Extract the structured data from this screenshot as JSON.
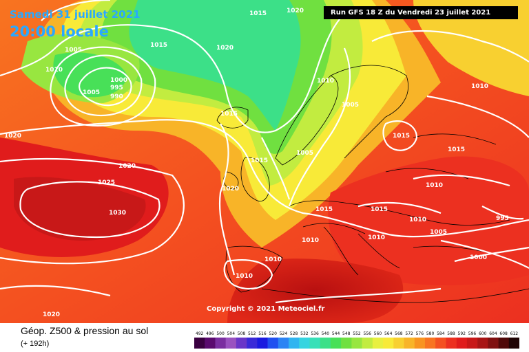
{
  "header": {
    "date": "Samedi 31 juillet 2021",
    "time": "20:00 locale",
    "run": "Run GFS 18 Z du Vendredi 23 juillet 2021"
  },
  "copyright": "Copyright © 2021 Meteociel.fr",
  "footer": {
    "title": "Géop. Z500 & pression au sol",
    "forecast_hour": "(+ 192h)"
  },
  "colour_scale": {
    "ticks": [
      "492",
      "496",
      "500",
      "504",
      "508",
      "512",
      "516",
      "520",
      "524",
      "528",
      "532",
      "536",
      "540",
      "544",
      "548",
      "552",
      "556",
      "560",
      "564",
      "568",
      "572",
      "576",
      "580",
      "584",
      "588",
      "592",
      "596",
      "600",
      "604",
      "608",
      "612"
    ],
    "colors": [
      "#3a0040",
      "#5a0a6e",
      "#7a2ea0",
      "#9a52c0",
      "#6a36c8",
      "#3a2ad8",
      "#1a1ae0",
      "#2050f0",
      "#2c84f4",
      "#30b4f0",
      "#36d4e0",
      "#38e0b8",
      "#3ce088",
      "#48e058",
      "#70e040",
      "#98e640",
      "#c2ec40",
      "#e8f040",
      "#f8ea38",
      "#f8d030",
      "#f8b428",
      "#f89420",
      "#f87420",
      "#f45020",
      "#ec3020",
      "#e01c1c",
      "#c81818",
      "#a81414",
      "#801010",
      "#500808",
      "#200404"
    ]
  },
  "isobar_labels": [
    "1015",
    "1020",
    "1015",
    "1020",
    "1005",
    "1010",
    "1005",
    "1000",
    "995",
    "990",
    "1015",
    "1015",
    "1010",
    "1005",
    "1005",
    "1015",
    "1015",
    "1015",
    "1020",
    "1020",
    "1025",
    "1030",
    "1020",
    "1010",
    "1010",
    "1010",
    "995",
    "1015",
    "1010",
    "1010",
    "1005",
    "1000",
    "1010",
    "1020",
    "1010"
  ]
}
